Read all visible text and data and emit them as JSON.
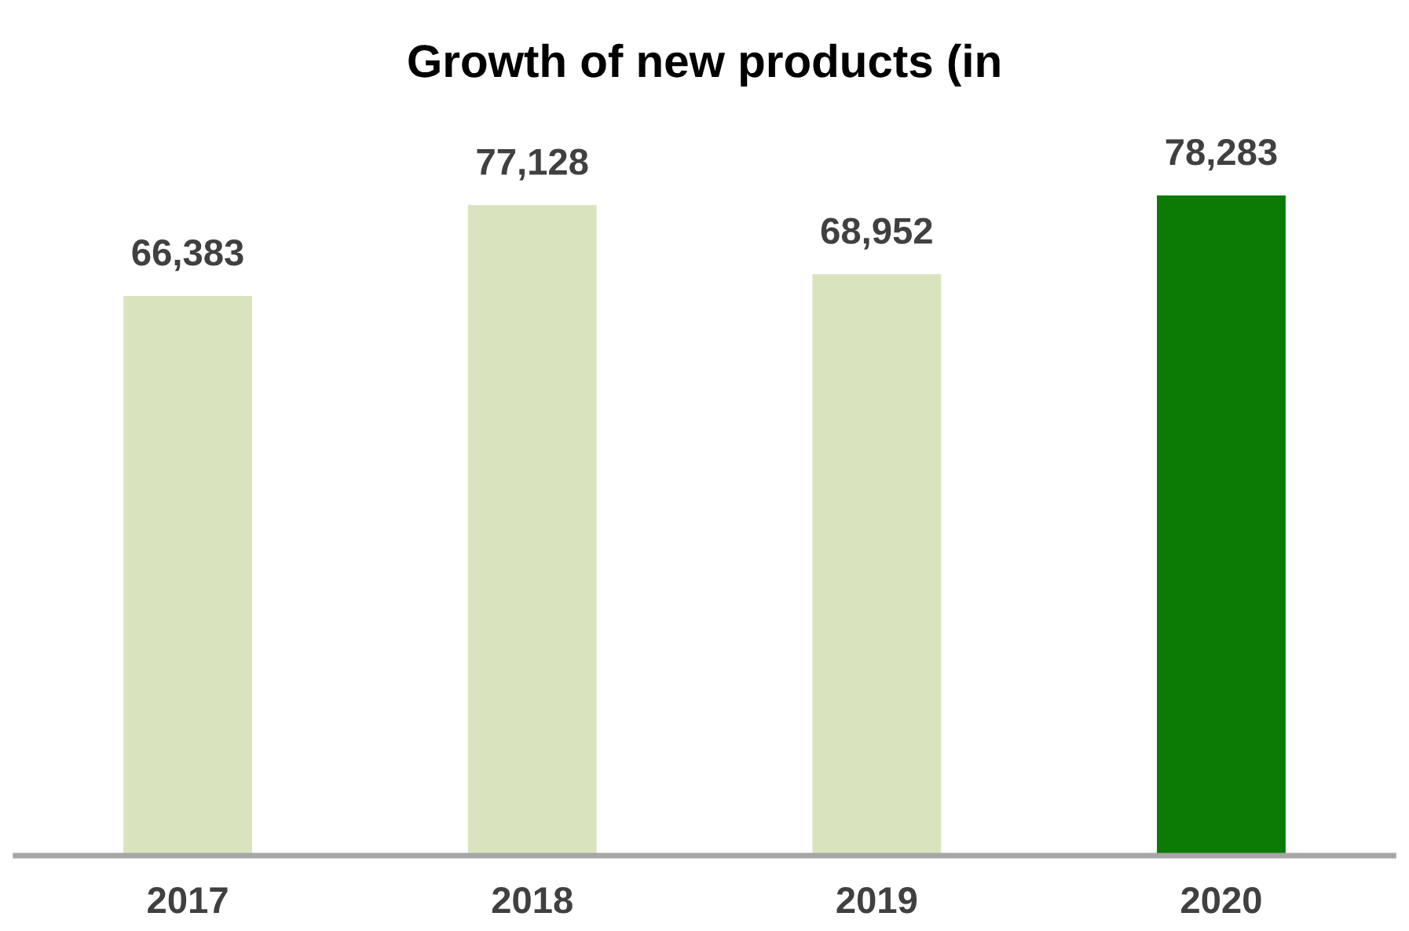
{
  "chart_data": {
    "type": "bar",
    "title": "Growth of new products (in",
    "categories": [
      "2017",
      "2018",
      "2019",
      "2020"
    ],
    "values": [
      66383,
      77128,
      68952,
      78283
    ],
    "colors": [
      "#d9e4bf",
      "#d9e4bf",
      "#d9e4bf",
      "#0b7b05"
    ],
    "data_labels": true,
    "value_labels": [
      "66,383",
      "77,128",
      "68,952",
      "78,283"
    ],
    "grid": false,
    "legend": false
  }
}
